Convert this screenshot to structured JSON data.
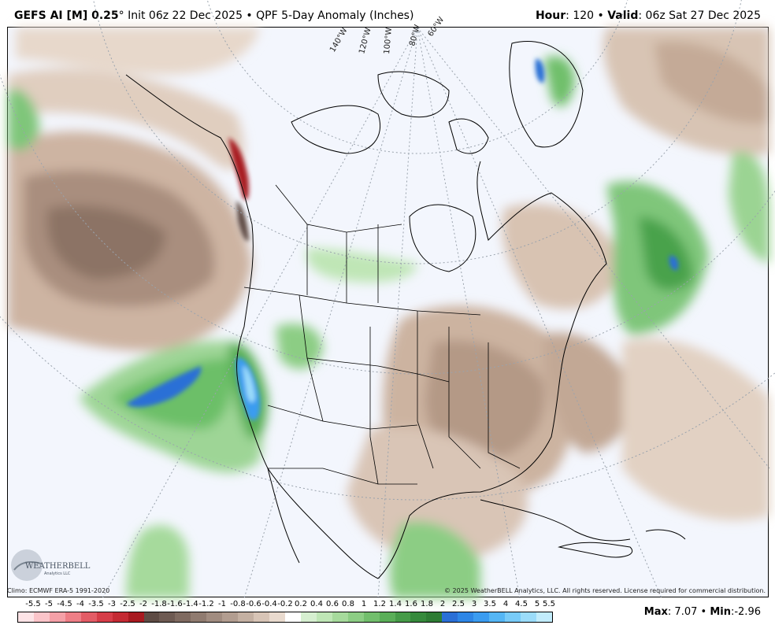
{
  "header": {
    "model": "GEFS AI [M] 0.25",
    "degree": "°",
    "init": " Init 06z 22 Dec 2025",
    "bullet": " • ",
    "product": "QPF 5-Day Anomaly (Inches)",
    "hour_label": "Hour",
    "hour_value": ": 120",
    "valid_label": "Valid",
    "valid_value": ": 06z Sat 27 Dec 2025"
  },
  "map": {
    "longitude_labels": [
      "140°W",
      "120°W",
      "100°W",
      "80°W",
      "60°W"
    ],
    "logo_text": "WEATHERBELL",
    "logo_subtext": "Analytics LLC"
  },
  "credits": {
    "climo": "Climo: ECMWF ERA-5 1991-2020",
    "copyright": "© 2025 WeatherBELL Analytics, LLC. All rights reserved. License required for commercial distribution."
  },
  "legend": {
    "labels": [
      "-5.5",
      "-5",
      "-4.5",
      "-4",
      "-3.5",
      "-3",
      "-2.5",
      "-2",
      "-1.8",
      "-1.6",
      "-1.4",
      "-1.2",
      "-1",
      "-0.8",
      "-0.6",
      "-0.4",
      "-0.2",
      "0.2",
      "0.4",
      "0.6",
      "0.8",
      "1",
      "1.2",
      "1.4",
      "1.6",
      "1.8",
      "2",
      "2.5",
      "3",
      "3.5",
      "4",
      "4.5",
      "5",
      "5.5"
    ],
    "colors": [
      "#fde3e6",
      "#fbc4c9",
      "#f5a0a7",
      "#ee7e86",
      "#e35c66",
      "#d63d48",
      "#c42a33",
      "#a81a20",
      "#5e4b44",
      "#6e5a52",
      "#7f6a60",
      "#907b70",
      "#a18c80",
      "#b29d90",
      "#c4b0a2",
      "#d7c4b6",
      "#e9dace",
      "#ffffff",
      "#d6efd0",
      "#bfe6b6",
      "#a6da9c",
      "#8ccd84",
      "#72be6c",
      "#5aae58",
      "#469b48",
      "#368a3c",
      "#2e7c34",
      "#2a6fd6",
      "#2e86e6",
      "#3b9cf0",
      "#55b6f5",
      "#78cbf8",
      "#9bdcfa",
      "#c2ecfc"
    ],
    "stats_max_label": "Max",
    "stats_max_value": ": 7.07",
    "stats_sep": " • ",
    "stats_min_label": "Min",
    "stats_min_value": ":-2.96"
  }
}
